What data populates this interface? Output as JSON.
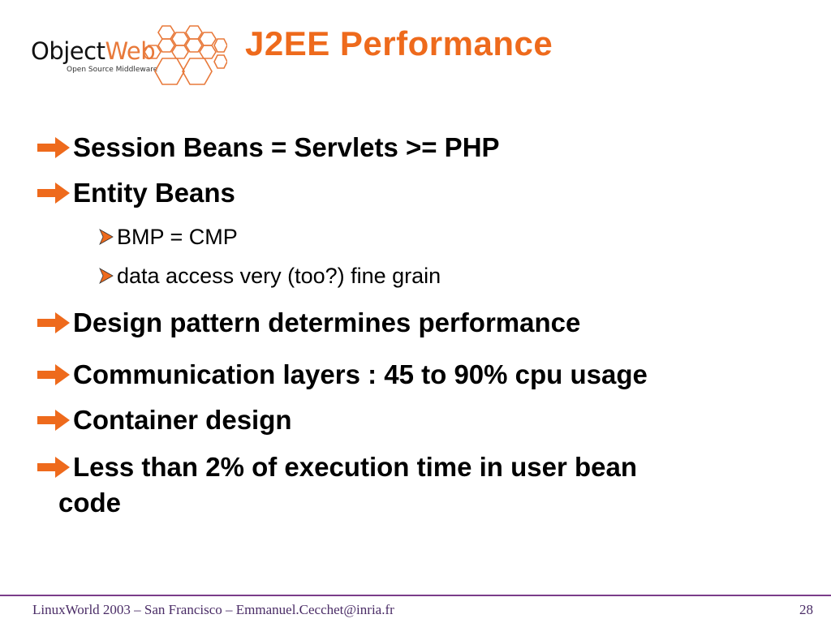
{
  "logo": {
    "text_object": "Object",
    "text_web": "Web",
    "tagline": "Open Source Middleware"
  },
  "slide": {
    "title": "J2EE Performance",
    "bullets": [
      {
        "level": 1,
        "text": "Session Beans = Servlets >= PHP"
      },
      {
        "level": 1,
        "text": "Entity Beans"
      },
      {
        "level": 2,
        "text": "BMP = CMP"
      },
      {
        "level": 2,
        "text": "data access very (too?) fine grain"
      },
      {
        "level": 1,
        "text": "Design pattern determines performance"
      },
      {
        "level": 1,
        "text": "Communication layers : 45 to 90% cpu usage"
      },
      {
        "level": 1,
        "text": "Container design"
      },
      {
        "level": 1,
        "text": "Less than 2% of execution time in user bean",
        "continuation": "code"
      }
    ]
  },
  "footer": {
    "left": "LinuxWorld 2003 – San Francisco – Emmanuel.Cecchet@inria.fr",
    "page_number": "28"
  },
  "colors": {
    "accent": "#ee6a1c",
    "footer_line": "#7a3d8a"
  },
  "icons": {
    "level1_bullet": "arrow-right-icon",
    "level2_bullet": "triangle-right-icon"
  }
}
